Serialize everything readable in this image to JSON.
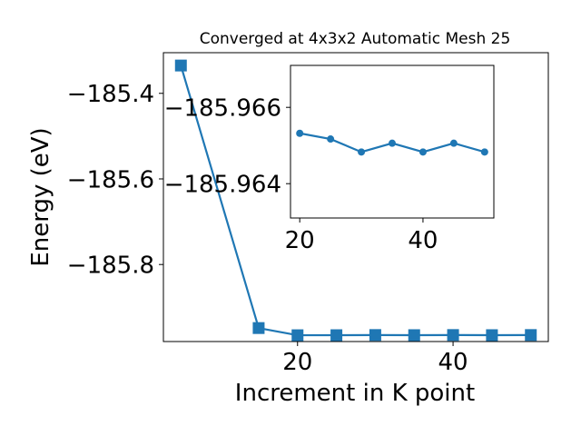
{
  "chart_data": [
    {
      "type": "line",
      "title": "Converged at 4x3x2 Automatic Mesh 25",
      "xlabel": "Increment in K point",
      "ylabel": "Energy (eV)",
      "x": [
        5,
        15,
        20,
        25,
        30,
        35,
        40,
        45,
        50
      ],
      "series": [
        {
          "values": [
            -185.335,
            -185.9485,
            -185.9653,
            -185.9652,
            -185.9648,
            -185.9651,
            -185.9648,
            -185.9651,
            -185.9648
          ]
        }
      ],
      "xlim": [
        2.75,
        52.25
      ],
      "ylim": [
        -185.98,
        -185.305
      ],
      "xticks": [
        20,
        40
      ],
      "yticks": [
        -185.4,
        -185.6,
        -185.8
      ],
      "xtick_labels": [
        "20",
        "40"
      ],
      "ytick_labels": [
        "−185.4",
        "−185.6",
        "−185.8"
      ],
      "grid": false,
      "marker": "square",
      "color": "#1f77b4"
    },
    {
      "type": "line",
      "title": "",
      "xlabel": "",
      "ylabel": "",
      "x": [
        20,
        25,
        30,
        35,
        40,
        45,
        50
      ],
      "series": [
        {
          "values": [
            -185.96532,
            -185.96517,
            -185.96483,
            -185.96506,
            -185.96483,
            -185.96506,
            -185.96483
          ]
        }
      ],
      "xlim": [
        18.5,
        51.5
      ],
      "ylim": [
        -185.9631,
        -185.9671
      ],
      "xticks": [
        20,
        40
      ],
      "yticks": [
        -185.966,
        -185.964
      ],
      "xtick_labels": [
        "20",
        "40"
      ],
      "ytick_labels": [
        "−185.966",
        "−185.964"
      ],
      "grid": false,
      "marker": "circle",
      "color": "#1f77b4"
    }
  ]
}
